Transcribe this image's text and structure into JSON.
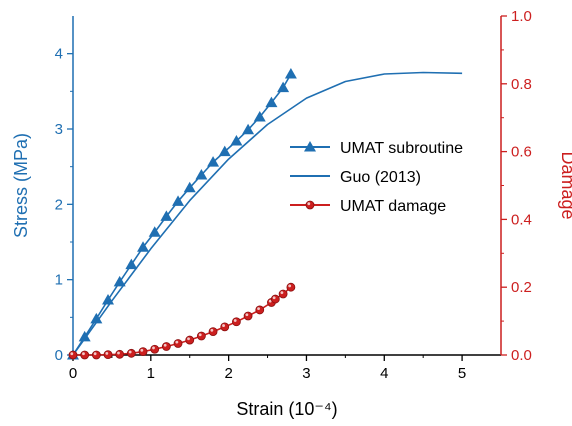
{
  "chart_data": {
    "type": "line",
    "x_axis": {
      "label": "Strain (10⁻⁴)",
      "range": [
        0,
        5.5
      ],
      "ticks": [
        0,
        1,
        2,
        3,
        4,
        5
      ],
      "tick_labels": [
        "0",
        "1",
        "2",
        "3",
        "4",
        "5"
      ]
    },
    "y_axis_left": {
      "label": "Stress (MPa)",
      "range": [
        0,
        4.5
      ],
      "ticks": [
        0,
        1,
        2,
        3,
        4
      ],
      "tick_labels": [
        "0",
        "1",
        "2",
        "3",
        "4"
      ],
      "color": "#1f6fb2"
    },
    "y_axis_right": {
      "label": "Damage",
      "range": [
        0,
        1.0
      ],
      "ticks": [
        0,
        0.2,
        0.4,
        0.6,
        0.8,
        1.0
      ],
      "tick_labels": [
        "0.0",
        "0.2",
        "0.4",
        "0.6",
        "0.8",
        "1.0"
      ],
      "color": "#cc1f1f"
    },
    "legend_position": "center-right",
    "grid": false,
    "series": [
      {
        "name": "UMAT subroutine",
        "axis": "left",
        "color": "#1f6fb2",
        "marker": "triangle",
        "line": true,
        "x": [
          0,
          0.15,
          0.3,
          0.45,
          0.6,
          0.75,
          0.9,
          1.05,
          1.2,
          1.35,
          1.5,
          1.65,
          1.8,
          1.95,
          2.1,
          2.25,
          2.4,
          2.55,
          2.7,
          2.8
        ],
        "y": [
          0,
          0.24,
          0.48,
          0.73,
          0.97,
          1.2,
          1.43,
          1.63,
          1.84,
          2.04,
          2.22,
          2.39,
          2.56,
          2.7,
          2.84,
          2.99,
          3.16,
          3.35,
          3.55,
          3.73
        ]
      },
      {
        "name": "Guo (2013)",
        "axis": "left",
        "color": "#1f6fb2",
        "marker": "none",
        "line": true,
        "x": [
          0,
          0.5,
          1.0,
          1.5,
          2.0,
          2.5,
          3.0,
          3.5,
          4.0,
          4.5,
          5.0
        ],
        "y": [
          0,
          0.72,
          1.41,
          2.05,
          2.6,
          3.06,
          3.41,
          3.63,
          3.73,
          3.75,
          3.74
        ]
      },
      {
        "name": "UMAT damage",
        "axis": "right",
        "color": "#cc1f1f",
        "marker": "circle",
        "line": true,
        "x": [
          0,
          0.15,
          0.3,
          0.45,
          0.6,
          0.75,
          0.9,
          1.05,
          1.2,
          1.35,
          1.5,
          1.65,
          1.8,
          1.95,
          2.1,
          2.25,
          2.4,
          2.55,
          2.6,
          2.7,
          2.8
        ],
        "y": [
          0,
          0,
          0,
          0.001,
          0.002,
          0.005,
          0.01,
          0.017,
          0.025,
          0.034,
          0.044,
          0.056,
          0.069,
          0.083,
          0.098,
          0.115,
          0.133,
          0.155,
          0.165,
          0.18,
          0.2
        ]
      }
    ]
  }
}
